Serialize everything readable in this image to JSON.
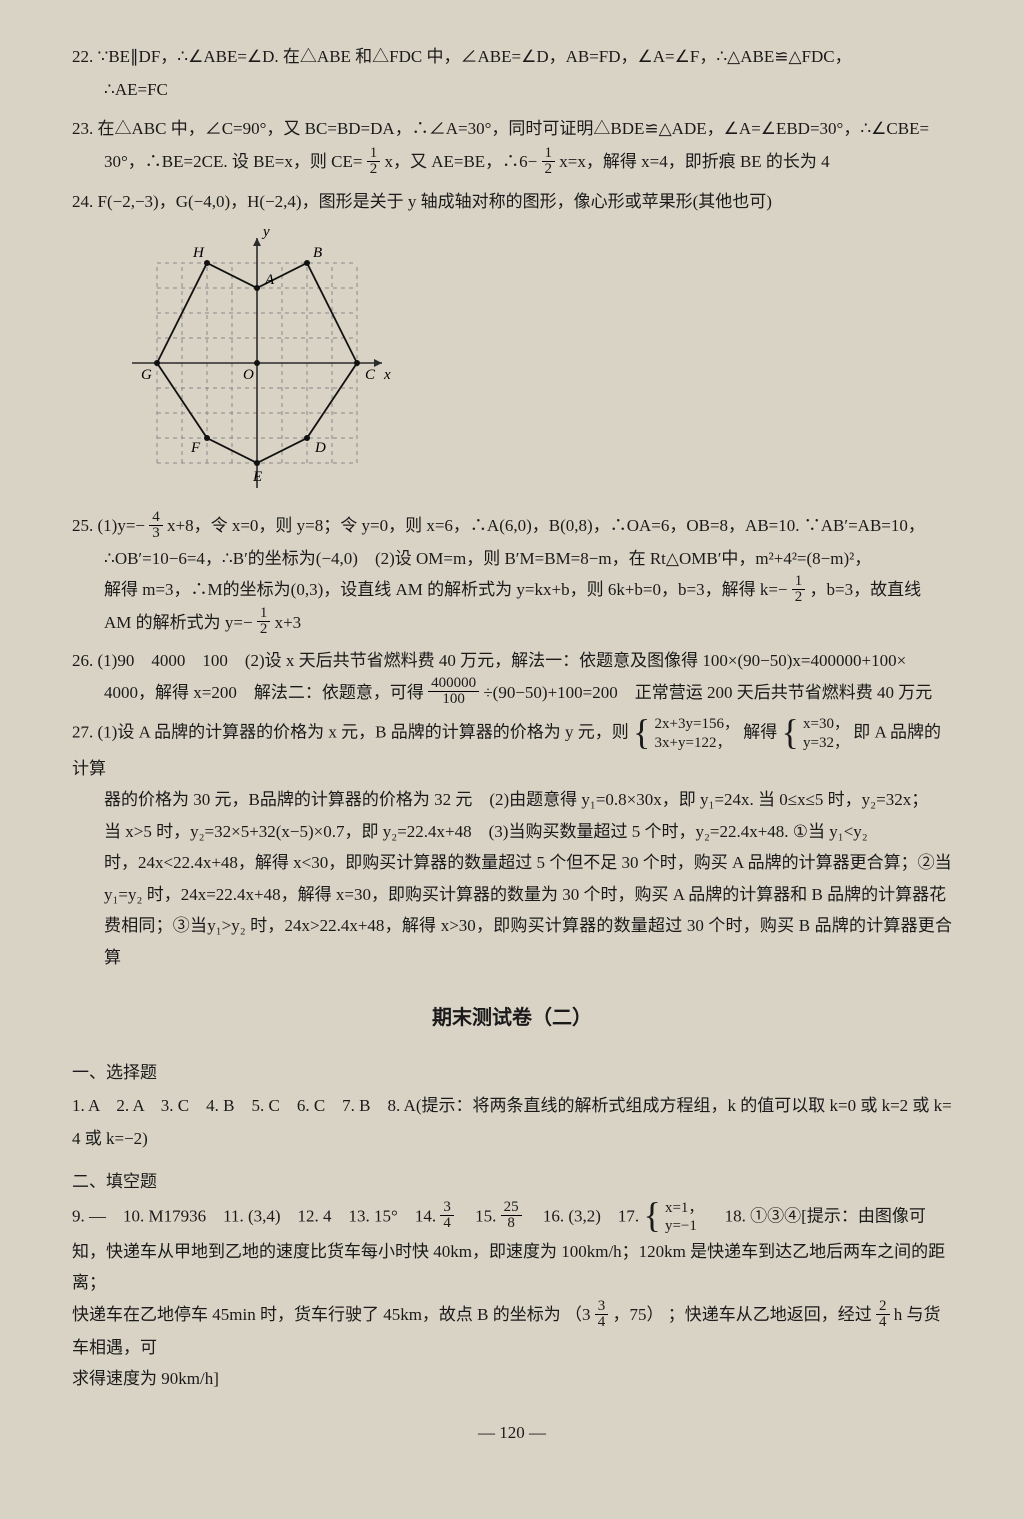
{
  "p22": {
    "line1": "22. ∵BE∥DF，∴∠ABE=∠D. 在△ABE 和△FDC 中，∠ABE=∠D，AB=FD，∠A=∠F，∴△ABE≌△FDC，",
    "line2": "∴AE=FC"
  },
  "p23": {
    "line1": "23. 在△ABC 中，∠C=90°，又 BC=BD=DA，∴∠A=30°，同时可证明△BDE≌△ADE，∠A=∠EBD=30°，∴∠CBE=",
    "line2_a": "30°，∴BE=2CE. 设 BE=x，则 CE=",
    "line2_b": "x，又 AE=BE，∴6−",
    "line2_c": "x=x，解得 x=4，即折痕 BE 的长为 4"
  },
  "p24": {
    "line1": "24. F(−2,−3)，G(−4,0)，H(−2,4)，图形是关于 y 轴成轴对称的图形，像心形或苹果形(其他也可)"
  },
  "graph": {
    "unit": 25,
    "labels": {
      "H": "H",
      "B": "B",
      "A": "A",
      "G": "G",
      "O": "O",
      "C": "C",
      "x": "x",
      "y": "y",
      "E": "E",
      "F": "F",
      "D": "D"
    },
    "points": {
      "H": [
        -2,
        4
      ],
      "B": [
        2,
        4
      ],
      "A": [
        0,
        3
      ],
      "G": [
        -4,
        0
      ],
      "C": [
        4,
        0
      ],
      "O": [
        0,
        0
      ],
      "F": [
        -2,
        -3
      ],
      "D": [
        2,
        -3
      ],
      "E": [
        0,
        -4
      ]
    },
    "axis_color": "#2b2b2b",
    "grid_color": "#888",
    "line_color": "#111",
    "bg": "#d9d3c5",
    "stroke_width": 1.8,
    "grid_dash": "4,4",
    "xlim": [
      -5,
      5
    ],
    "ylim": [
      -5,
      5
    ]
  },
  "p25": {
    "a": "25. (1)y=−",
    "b": "x+8，令 x=0，则 y=8；令 y=0，则 x=6，∴A(6,0)，B(0,8)，∴OA=6，OB=8，AB=10. ∵AB′=AB=10，",
    "c": "∴OB′=10−6=4，∴B′的坐标为(−4,0)　(2)设 OM=m，则 B′M=BM=8−m，在 Rt△OMB′中，m²+4²=(8−m)²，",
    "d": "解得 m=3，∴M的坐标为(0,3)，设直线 AM 的解析式为 y=kx+b，则 6k+b=0，b=3，解得 k=−",
    "e": "，b=3，故直线",
    "f": "AM 的解析式为 y=−",
    "g": "x+3"
  },
  "p26": {
    "a": "26. (1)90　4000　100　(2)设 x 天后共节省燃料费 40 万元，解法一：依题意及图像得 100×(90−50)x=400000+100×",
    "b": "4000，解得 x=200　解法二：依题意，可得",
    "c": "÷(90−50)+100=200　正常营运 200 天后共节省燃料费 40 万元"
  },
  "p27": {
    "a": "27. (1)设 A 品牌的计算器的价格为 x 元，B 品牌的计算器的价格为 y 元，则",
    "sys1a": "2x+3y=156，",
    "sys1b": "3x+y=122，",
    "mid": "解得",
    "sys2a": "x=30，",
    "sys2b": "y=32，",
    "tail": "即 A 品牌的计算",
    "b": "器的价格为 30 元，B品牌的计算器的价格为 32 元　(2)由题意得 y₁=0.8×30x，即 y₁=24x. 当 0≤x≤5 时，y₂=32x；",
    "c": "当 x>5 时，y₂=32×5+32(x−5)×0.7，即 y₂=22.4x+48　(3)当购买数量超过 5 个时，y₂=22.4x+48. ①当 y₁<y₂",
    "d": "时，24x<22.4x+48，解得 x<30，即购买计算器的数量超过 5 个但不足 30 个时，购买 A 品牌的计算器更合算；②当",
    "e": "y₁=y₂ 时，24x=22.4x+48，解得 x=30，即购买计算器的数量为 30 个时，购买 A 品牌的计算器和 B 品牌的计算器花",
    "f": "费相同；③当y₁>y₂ 时，24x>22.4x+48，解得 x>30，即购买计算器的数量超过 30 个时，购买 B 品牌的计算器更合算"
  },
  "title2": "期末测试卷（二）",
  "sec1_head": "一、选择题",
  "sec1": {
    "a": "1. A　2. A　3. C　4. B　5. C　6. C　7. B　8. A(提示：将两条直线的解析式组成方程组，k 的值可以取 k=0 或 k=2 或 k=",
    "b": "4 或 k=−2)"
  },
  "sec2_head": "二、填空题",
  "sec2": {
    "a": "9. —　10. M17936　11. (3,4)　12. 4　13. 15°　14. ",
    "b": "　15. ",
    "c": "　16. (3,2)　17. ",
    "sysA": "x=1，",
    "sysB": "y=−1",
    "d": "　18. ①③④[提示：由图像可",
    "e": "知，快递车从甲地到乙地的速度比货车每小时快 40km，即速度为 100km/h；120km 是快递车到达乙地后两车之间的距离；",
    "f_a": "快递车在乙地停车 45min 时，货车行驶了 45km，故点 B 的坐标为",
    "mixed_w": "3",
    "mixed_n": "3",
    "mixed_d": "4",
    "f_b": "，75",
    "f_c": "；快递车从乙地返回，经过",
    "ret_n": "2",
    "ret_d": "4",
    "f_d": " h 与货车相遇，可",
    "g": "求得速度为 90km/h]"
  },
  "fracs": {
    "half_n": "1",
    "half_d": "2",
    "f43_n": "4",
    "f43_d": "3",
    "f34_n": "3",
    "f34_d": "4",
    "f258_n": "25",
    "f258_d": "8",
    "f400000_n": "400000",
    "f400000_d": "100"
  },
  "pagenum": "— 120 —"
}
